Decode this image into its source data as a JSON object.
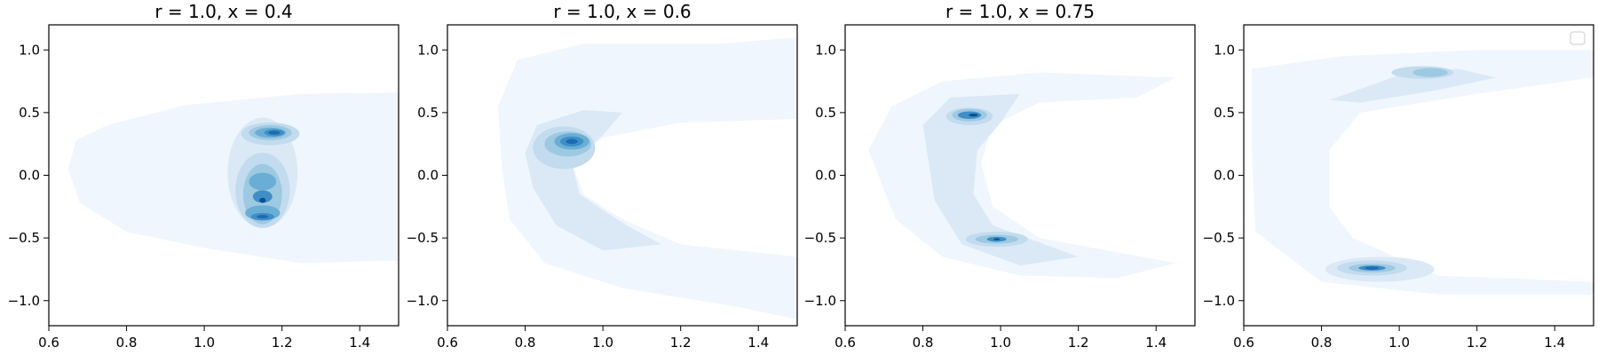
{
  "chart_data": [
    {
      "type": "contour",
      "title": "r = 1.0, x = 0.4",
      "xlabel": "",
      "ylabel": "",
      "xlim": [
        0.6,
        1.5
      ],
      "ylim": [
        -1.2,
        1.2
      ],
      "xticks": [
        "0.6",
        "0.8",
        "1.0",
        "1.2",
        "1.4"
      ],
      "yticks": [
        "−1.0",
        "−0.5",
        "0.0",
        "0.5",
        "1.0"
      ],
      "colormap": "Blues",
      "legend": false,
      "density_peaks": [
        {
          "x": 1.18,
          "y": 0.34,
          "level": "high"
        },
        {
          "x": 1.15,
          "y": -0.17,
          "level": "high"
        },
        {
          "x": 1.15,
          "y": -0.33,
          "level": "high"
        }
      ]
    },
    {
      "type": "contour",
      "title": "r = 1.0, x = 0.6",
      "xlabel": "",
      "ylabel": "",
      "xlim": [
        0.6,
        1.5
      ],
      "ylim": [
        -1.2,
        1.2
      ],
      "xticks": [
        "0.6",
        "0.8",
        "1.0",
        "1.2",
        "1.4"
      ],
      "yticks": [
        "−1.0",
        "−0.5",
        "0.0",
        "0.5",
        "1.0"
      ],
      "colormap": "Blues",
      "legend": false,
      "density_peaks": [
        {
          "x": 0.92,
          "y": 0.27,
          "level": "high"
        }
      ]
    },
    {
      "type": "contour",
      "title": "r = 1.0, x = 0.75",
      "xlabel": "",
      "ylabel": "",
      "xlim": [
        0.6,
        1.5
      ],
      "ylim": [
        -1.2,
        1.2
      ],
      "xticks": [
        "0.6",
        "0.8",
        "1.0",
        "1.2",
        "1.4"
      ],
      "yticks": [
        "−1.0",
        "−0.5",
        "0.0",
        "0.5",
        "1.0"
      ],
      "colormap": "Blues",
      "legend": false,
      "density_peaks": [
        {
          "x": 0.92,
          "y": 0.48,
          "level": "high"
        },
        {
          "x": 0.99,
          "y": -0.51,
          "level": "high"
        }
      ]
    },
    {
      "type": "contour",
      "title": "",
      "xlabel": "",
      "ylabel": "",
      "xlim": [
        0.6,
        1.5
      ],
      "ylim": [
        -1.2,
        1.2
      ],
      "xticks": [
        "0.6",
        "0.8",
        "1.0",
        "1.2",
        "1.4"
      ],
      "yticks": [
        "−1.0",
        "−0.5",
        "0.0",
        "0.5",
        "1.0"
      ],
      "colormap": "Blues",
      "legend": true,
      "legend_position": "top-right",
      "density_peaks": [
        {
          "x": 1.08,
          "y": 0.83,
          "level": "high"
        },
        {
          "x": 0.93,
          "y": -0.74,
          "level": "high"
        }
      ]
    }
  ]
}
